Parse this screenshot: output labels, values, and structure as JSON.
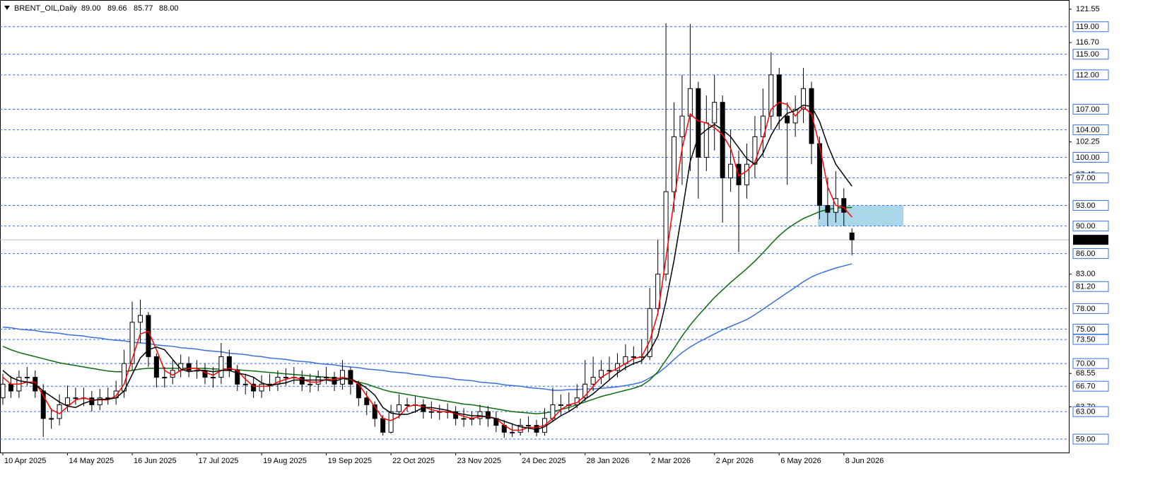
{
  "chart_data": {
    "type": "candlestick",
    "title": "BRENT_OIL,Daily",
    "last_ohlc": [
      {
        "value": 89,
        "label": "89.00"
      },
      {
        "value": 89.66,
        "label": "89.66"
      },
      {
        "value": 85.77,
        "label": "85.77"
      },
      {
        "value": 88,
        "label": "88.00"
      }
    ],
    "categories": [
      "10 Apr 2025",
      null,
      null,
      null,
      null,
      null,
      null,
      null,
      "14 May 2025",
      null,
      null,
      null,
      null,
      null,
      null,
      null,
      "16 Jun 2025",
      null,
      null,
      null,
      null,
      null,
      null,
      null,
      "17 Jul 2025",
      null,
      null,
      null,
      null,
      null,
      null,
      null,
      "19 Aug 2025",
      null,
      null,
      null,
      null,
      null,
      null,
      null,
      "19 Sep 2025",
      null,
      null,
      null,
      null,
      null,
      null,
      null,
      "22 Oct 2025",
      null,
      null,
      null,
      null,
      null,
      null,
      null,
      "23 Nov 2025",
      null,
      null,
      null,
      null,
      null,
      null,
      null,
      "24 Dec 2025",
      null,
      null,
      null,
      null,
      null,
      null,
      null,
      "28 Jan 2026",
      null,
      null,
      null,
      null,
      null,
      null,
      null,
      "2 Mar 2026",
      null,
      null,
      null,
      null,
      null,
      null,
      null,
      "2 Apr 2026",
      null,
      null,
      null,
      null,
      null,
      null,
      null,
      "6 May 2026",
      null,
      null,
      null,
      null,
      null,
      null,
      null,
      "8 Jun 2026",
      null
    ],
    "open": [
      65,
      67,
      66,
      68,
      68,
      66,
      62,
      62,
      64,
      65,
      65,
      65,
      64,
      65,
      65,
      66,
      70,
      76,
      77,
      71,
      68,
      68,
      69,
      70,
      69,
      69,
      68,
      68,
      71,
      69,
      67,
      67,
      66,
      67,
      67,
      68,
      68,
      68,
      67,
      67,
      68,
      68,
      67,
      69,
      67,
      65,
      64,
      62,
      60,
      63,
      64,
      64,
      64,
      63,
      63,
      63,
      63,
      62,
      62,
      62,
      63,
      62,
      61,
      60,
      60,
      61,
      61,
      60,
      62,
      64,
      64,
      64,
      65,
      67,
      68,
      69,
      69,
      70,
      71,
      71,
      71,
      78,
      83,
      95,
      103,
      106,
      110,
      100,
      105,
      108,
      97,
      99,
      96,
      99,
      103,
      106,
      112,
      106,
      105,
      107,
      110,
      102,
      93,
      92,
      94,
      89
    ],
    "high": [
      68.5,
      68.2,
      69,
      69.5,
      69,
      67,
      63.5,
      65.5,
      66.8,
      66.5,
      66.5,
      66,
      66.3,
      66.5,
      67.5,
      72,
      79,
      79.3,
      77.5,
      71.5,
      69.5,
      70.5,
      71.3,
      71,
      70.5,
      70,
      69.5,
      73,
      72,
      69.8,
      68.5,
      68,
      68.3,
      68.5,
      69,
      69.3,
      69.5,
      69,
      68.5,
      69,
      69.5,
      68.8,
      70.5,
      69.5,
      67.5,
      66,
      64.5,
      62.5,
      64,
      65.5,
      65,
      65.3,
      64.8,
      64.5,
      64,
      64.2,
      63.8,
      63.5,
      63,
      64,
      63.8,
      63,
      61.8,
      61.3,
      62,
      62.3,
      61.8,
      63.5,
      66.5,
      65.5,
      65.8,
      67,
      70.5,
      71,
      70.5,
      71,
      71.5,
      72.8,
      72.5,
      73.5,
      81,
      88,
      119.5,
      108,
      112,
      119.4,
      111,
      109,
      112,
      109,
      104,
      101,
      102,
      106,
      110,
      115.3,
      113,
      108,
      109,
      113,
      111,
      103,
      97,
      98,
      95.5,
      89.66
    ],
    "low": [
      64,
      65,
      65,
      66.8,
      65,
      59.3,
      60.5,
      61,
      63,
      64,
      63.8,
      63,
      63.2,
      64,
      64,
      65,
      69,
      73,
      69.5,
      66.5,
      66.5,
      67,
      68,
      68,
      67.8,
      67,
      66.5,
      67,
      68,
      66,
      65.5,
      65,
      65,
      66,
      66,
      66.8,
      67,
      66,
      65.8,
      66,
      67,
      66,
      66.2,
      65.5,
      63.8,
      62.5,
      60.8,
      59.5,
      59.8,
      62,
      63,
      62.8,
      62,
      62,
      61.8,
      62,
      61,
      60.8,
      61,
      61,
      60.8,
      60,
      59.2,
      59.3,
      59.5,
      60,
      59.4,
      59.5,
      61.5,
      62.5,
      63,
      63.5,
      64.5,
      66,
      67,
      67.5,
      68,
      69,
      69.8,
      70,
      70.5,
      77,
      82,
      92,
      96,
      98,
      94,
      98,
      101,
      90.5,
      95,
      86.2,
      94,
      97,
      100,
      104,
      104,
      96,
      103,
      105,
      99,
      91,
      90,
      90.5,
      90,
      85.77
    ],
    "close": [
      67,
      66,
      68,
      68,
      66,
      62,
      62,
      64,
      65,
      65,
      65,
      64,
      65,
      65,
      66,
      70,
      76,
      77,
      71,
      68,
      68,
      69,
      70,
      69,
      69,
      68,
      68,
      71,
      69,
      67,
      67,
      66,
      67,
      67,
      68,
      68,
      68,
      67,
      67,
      68,
      68,
      67,
      69,
      67,
      65,
      64,
      62,
      60,
      63,
      64,
      64,
      64,
      63,
      63,
      63,
      63,
      62,
      62,
      62,
      63,
      62,
      61,
      60,
      60,
      61,
      61,
      60,
      62,
      64,
      64,
      64,
      65,
      67,
      68,
      69,
      69,
      70,
      71,
      71,
      71,
      78,
      83,
      95,
      103,
      106,
      110,
      100,
      105,
      108,
      97,
      99,
      96,
      99,
      103,
      106,
      112,
      106,
      105,
      107,
      110,
      102,
      93,
      92,
      94,
      92,
      88
    ],
    "up_color": "#ffffff",
    "down_color": "#000000",
    "series": [
      {
        "color": "#3b6fdb",
        "values": [
          75.3,
          75.2,
          75,
          74.9,
          74.8,
          74.6,
          74.5,
          74.4,
          74.2,
          74.1,
          74,
          73.8,
          73.7,
          73.5,
          73.4,
          73.3,
          73.1,
          73,
          72.9,
          72.7,
          72.6,
          72.5,
          72.3,
          72.2,
          72.1,
          71.9,
          71.8,
          71.7,
          71.5,
          71.4,
          71.3,
          71.1,
          71,
          70.8,
          70.7,
          70.6,
          70.4,
          70.3,
          70.2,
          70,
          69.9,
          69.8,
          69.6,
          69.5,
          69.4,
          69.2,
          69.1,
          69,
          68.8,
          68.7,
          68.6,
          68.4,
          68.3,
          68.1,
          68,
          67.9,
          67.7,
          67.6,
          67.5,
          67.3,
          67.2,
          67.1,
          66.9,
          66.8,
          66.7,
          66.5,
          66.4,
          66.3,
          66.1,
          66.1,
          66.2,
          66.2,
          66.3,
          66.3,
          66.4,
          66.5,
          66.6,
          66.8,
          67,
          67.3,
          67.9,
          68.6,
          69.5,
          70.6,
          71.6,
          72.4,
          73.1,
          73.7,
          74.3,
          74.9,
          75.4,
          75.9,
          76.4,
          77.1,
          77.9,
          78.7,
          79.5,
          80.3,
          81.1,
          81.9,
          82.6,
          83.1,
          83.5,
          83.9,
          84.2,
          84.5
        ]
      },
      {
        "color": "#0d6b0d",
        "values": [
          72.5,
          72,
          71.6,
          71.3,
          71,
          70.7,
          70.4,
          70.1,
          69.9,
          69.7,
          69.5,
          69.3,
          69.1,
          68.9,
          68.8,
          68.8,
          69,
          69.2,
          69.3,
          69.3,
          69.3,
          69.3,
          69.3,
          69.3,
          69.3,
          69.3,
          69.2,
          69.2,
          69.2,
          69.1,
          69,
          68.9,
          68.8,
          68.7,
          68.6,
          68.5,
          68.4,
          68.3,
          68.2,
          68.1,
          68,
          67.9,
          67.8,
          67.6,
          67.3,
          67,
          66.6,
          66.2,
          65.9,
          65.7,
          65.5,
          65.3,
          65.1,
          64.9,
          64.7,
          64.5,
          64.3,
          64.1,
          64,
          63.8,
          63.6,
          63.4,
          63.2,
          63,
          62.9,
          62.8,
          62.7,
          62.8,
          63,
          63.3,
          63.6,
          64,
          64.4,
          64.8,
          65.2,
          65.5,
          65.8,
          66.1,
          66.4,
          66.8,
          67.6,
          68.8,
          70.5,
          72.2,
          74,
          75.6,
          77,
          78.3,
          79.6,
          80.7,
          81.8,
          82.8,
          83.8,
          84.9,
          86.1,
          87.4,
          88.6,
          89.6,
          90.4,
          91.1,
          91.6,
          92.1,
          92.4,
          92.6,
          92.7,
          92.7
        ]
      },
      {
        "color": "#ff0000",
        "values": [
          68,
          67,
          67,
          67.3,
          67.3,
          65.3,
          63.3,
          62.7,
          63.7,
          64.7,
          65,
          64.7,
          64.7,
          64.7,
          65.3,
          67,
          70.7,
          74.3,
          74.7,
          72,
          69,
          68.3,
          69,
          69.3,
          69.3,
          68.7,
          68.3,
          69,
          69.3,
          69,
          67.7,
          66.7,
          66.7,
          66.7,
          67.3,
          67.7,
          68,
          67.7,
          67.3,
          67.3,
          67.7,
          67.7,
          68,
          67.7,
          67,
          65.3,
          63.7,
          62,
          61.7,
          62.3,
          63.7,
          64,
          63.7,
          63.3,
          63,
          63,
          62.7,
          62.3,
          62,
          62.3,
          62.3,
          62,
          61,
          60.3,
          60.3,
          60.7,
          60.7,
          61,
          62,
          63.3,
          64,
          64.3,
          65.3,
          66.7,
          68,
          68.7,
          69.3,
          70,
          70.7,
          71,
          73.3,
          77.3,
          85.3,
          93.7,
          101.3,
          106.3,
          105.3,
          105,
          104.3,
          103.3,
          101.3,
          97.3,
          98,
          99.3,
          102.7,
          107,
          108,
          107.7,
          106,
          107.3,
          106.3,
          101.7,
          95.7,
          93,
          92.7,
          91.3
        ]
      },
      {
        "color": "#000000",
        "values": [
          69,
          68,
          67.5,
          67.3,
          67,
          66,
          65.2,
          64.4,
          63.8,
          63.6,
          64.2,
          64.6,
          64.8,
          64.8,
          65,
          66,
          68.4,
          70.8,
          72,
          72.4,
          72,
          70.6,
          69.2,
          68.8,
          69,
          69,
          68.8,
          69,
          69,
          68.6,
          68.4,
          68,
          67.2,
          66.8,
          67,
          67.2,
          67.6,
          67.6,
          67.6,
          67.6,
          67.6,
          67.4,
          67.8,
          67.8,
          67.2,
          66.4,
          65.4,
          63.6,
          62.8,
          62.6,
          62.6,
          63,
          63.6,
          63.6,
          63.4,
          63.2,
          62.8,
          62.6,
          62.4,
          62.4,
          62.2,
          62,
          61.6,
          61.2,
          60.8,
          60.6,
          60.4,
          60.8,
          61.6,
          62.4,
          63,
          63.8,
          64.8,
          65.6,
          66.6,
          67.6,
          68.6,
          69.4,
          70,
          70.4,
          71.8,
          74,
          79,
          85,
          92,
          99.4,
          103,
          104,
          104.8,
          104,
          103,
          101.4,
          99.8,
          99,
          100.6,
          103.2,
          105.2,
          106.4,
          106.8,
          107.6,
          107.4,
          105.2,
          101.8,
          99,
          97.4,
          95.8
        ]
      }
    ],
    "ylim": [
      57.05,
      122.58
    ],
    "yticks": [
      121.55,
      {
        "value": 116.7,
        "label": "116.70"
      },
      102.25,
      97.45,
      {
        "value": 83,
        "label": "83.00"
      },
      68.55,
      {
        "value": 63.7,
        "label": "63.70"
      }
    ],
    "levels": [
      {
        "value": 119,
        "label": "119.00"
      },
      {
        "value": 115,
        "label": "115.00"
      },
      {
        "value": 112,
        "label": "112.00"
      },
      {
        "value": 107,
        "label": "107.00"
      },
      {
        "value": 104,
        "label": "104.00"
      },
      {
        "value": 100,
        "label": "100.00"
      },
      {
        "value": 97,
        "label": "97.00"
      },
      {
        "value": 93,
        "label": "93.00"
      },
      {
        "value": 90,
        "label": "90.00"
      },
      {
        "value": 86,
        "label": "86.00"
      },
      {
        "value": 81.2,
        "label": "81.20"
      },
      {
        "value": 78,
        "label": "78.00"
      },
      {
        "value": 75,
        "label": "75.00"
      },
      {
        "value": 73.5,
        "label": "73.50"
      },
      {
        "value": 70,
        "label": "70.00"
      },
      {
        "value": 66.7,
        "label": "66.70"
      },
      {
        "value": 63,
        "label": "63.00"
      },
      {
        "value": 59,
        "label": "59.00"
      }
    ],
    "levels_color": "#3b6fdb",
    "last_price": {
      "value": 88,
      "label": "88.00"
    },
    "zone": [
      90,
      93
    ],
    "zone_color": "#a9d6e8"
  }
}
